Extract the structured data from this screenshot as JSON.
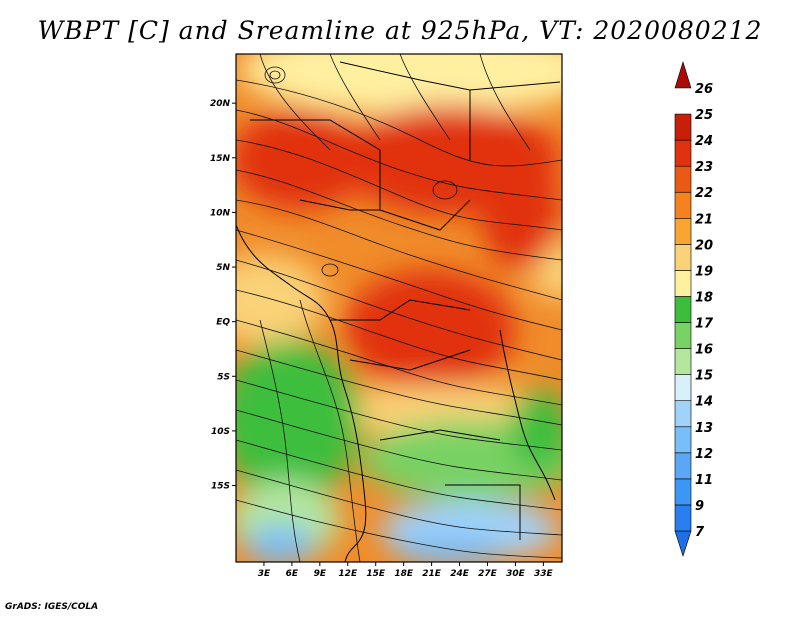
{
  "title": "WBPT [C] and Sreamline at 925hPa, VT: 2020080212",
  "credit": "GrADS: IGES/COLA",
  "map": {
    "lon_range": [
      0,
      35
    ],
    "lat_range": [
      -22,
      24.5
    ],
    "lat_ticks": [
      {
        "label": "20N",
        "lat": 20
      },
      {
        "label": "15N",
        "lat": 15
      },
      {
        "label": "10N",
        "lat": 10
      },
      {
        "label": "5N",
        "lat": 5
      },
      {
        "label": "EQ",
        "lat": 0
      },
      {
        "label": "5S",
        "lat": -5
      },
      {
        "label": "10S",
        "lat": -10
      },
      {
        "label": "15S",
        "lat": -15
      }
    ],
    "lon_ticks": [
      {
        "label": "3E",
        "lon": 3
      },
      {
        "label": "6E",
        "lon": 6
      },
      {
        "label": "9E",
        "lon": 9
      },
      {
        "label": "12E",
        "lon": 12
      },
      {
        "label": "15E",
        "lon": 15
      },
      {
        "label": "18E",
        "lon": 18
      },
      {
        "label": "21E",
        "lon": 21
      },
      {
        "label": "24E",
        "lon": 24
      },
      {
        "label": "27E",
        "lon": 27
      },
      {
        "label": "30E",
        "lon": 30
      },
      {
        "label": "33E",
        "lon": 33
      }
    ]
  },
  "colorbar": {
    "levels": [
      "7",
      "9",
      "11",
      "12",
      "13",
      "14",
      "15",
      "16",
      "17",
      "18",
      "19",
      "20",
      "21",
      "22",
      "23",
      "24",
      "25",
      "26"
    ],
    "colors": [
      "#1e6ee6",
      "#2a7ff0",
      "#3c96f5",
      "#5aa8f5",
      "#78bef8",
      "#a0d2fa",
      "#d8f0fa",
      "#b4e6a0",
      "#78d264",
      "#3cbe3c",
      "#fff0a0",
      "#fad278",
      "#faa532",
      "#f5821e",
      "#eb5a14",
      "#e1320f",
      "#c81e0a",
      "#aa0a0a"
    ]
  }
}
